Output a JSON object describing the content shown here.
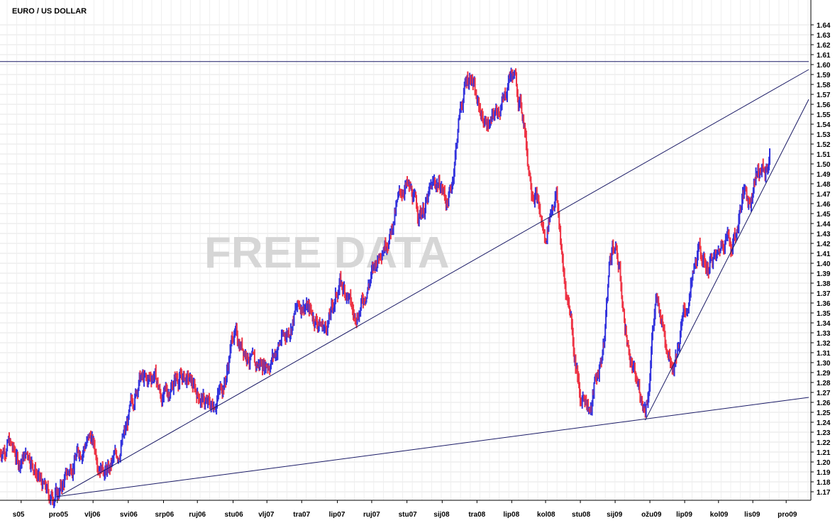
{
  "chart_data": {
    "type": "candlestick",
    "title": "EURO / US DOLLAR",
    "watermark": "FREE DATA",
    "ylim": [
      1.16,
      1.65
    ],
    "yticks": [
      1.17,
      1.18,
      1.19,
      1.2,
      1.21,
      1.22,
      1.23,
      1.24,
      1.25,
      1.26,
      1.27,
      1.28,
      1.29,
      1.3,
      1.31,
      1.32,
      1.33,
      1.34,
      1.35,
      1.36,
      1.37,
      1.38,
      1.39,
      1.4,
      1.41,
      1.42,
      1.43,
      1.44,
      1.45,
      1.46,
      1.47,
      1.48,
      1.49,
      1.5,
      1.51,
      1.52,
      1.53,
      1.54,
      1.55,
      1.56,
      1.57,
      1.58,
      1.59,
      1.6,
      1.61,
      1.62,
      1.63,
      1.64
    ],
    "ytick_labels": [
      "1.17",
      "1.18",
      "1.19",
      "1.20",
      "1.21",
      "1.22",
      "1.23",
      "1.24",
      "1.25",
      "1.26",
      "1.27",
      "1.28",
      "1.29",
      "1.30",
      "1.31",
      "1.32",
      "1.33",
      "1.34",
      "1.35",
      "1.36",
      "1.37",
      "1.38",
      "1.39",
      "1.40",
      "1.41",
      "1.42",
      "1.43",
      "1.44",
      "1.45",
      "1.46",
      "1.47",
      "1.48",
      "1.49",
      "1.50",
      "1.51",
      "1.52",
      "1.53",
      "1.54",
      "1.55",
      "1.56",
      "1.57",
      "1.58",
      "1.59",
      "1.60",
      "1.61",
      "1.62",
      "1.63",
      "1.64"
    ],
    "xlim": [
      "2005-08-01",
      "2010-01-25"
    ],
    "xticks": [
      {
        "date": "2005-09-15",
        "label": "s05"
      },
      {
        "date": "2005-12-01",
        "label": "pro05"
      },
      {
        "date": "2006-02-15",
        "label": "vlj06"
      },
      {
        "date": "2006-05-01",
        "label": "svi06"
      },
      {
        "date": "2006-07-15",
        "label": "srp06"
      },
      {
        "date": "2006-09-25",
        "label": "ruj06"
      },
      {
        "date": "2006-12-10",
        "label": "stu06"
      },
      {
        "date": "2007-02-20",
        "label": "vlj07"
      },
      {
        "date": "2007-05-05",
        "label": "tra07"
      },
      {
        "date": "2007-07-20",
        "label": "lip07"
      },
      {
        "date": "2007-10-01",
        "label": "ruj07"
      },
      {
        "date": "2007-12-15",
        "label": "stu07"
      },
      {
        "date": "2008-02-28",
        "label": "sij08"
      },
      {
        "date": "2008-05-12",
        "label": "tra08"
      },
      {
        "date": "2008-07-25",
        "label": "lip08"
      },
      {
        "date": "2008-10-05",
        "label": "kol08"
      },
      {
        "date": "2008-12-18",
        "label": "stu08"
      },
      {
        "date": "2009-03-02",
        "label": "sij09"
      },
      {
        "date": "2009-05-15",
        "label": "ožu09"
      },
      {
        "date": "2009-07-28",
        "label": "lip09"
      },
      {
        "date": "2009-10-08",
        "label": "kol09"
      },
      {
        "date": "2009-12-20",
        "label": "lis09"
      },
      {
        "date": "2010-03-01",
        "label": "pro09"
      }
    ],
    "anchors": [
      [
        "2005-08-01",
        1.21
      ],
      [
        "2005-08-20",
        1.22
      ],
      [
        "2005-09-10",
        1.2
      ],
      [
        "2005-10-01",
        1.21
      ],
      [
        "2005-10-25",
        1.18
      ],
      [
        "2005-11-15",
        1.165
      ],
      [
        "2005-12-05",
        1.17
      ],
      [
        "2005-12-25",
        1.19
      ],
      [
        "2006-01-15",
        1.21
      ],
      [
        "2006-02-10",
        1.225
      ],
      [
        "2006-02-28",
        1.2
      ],
      [
        "2006-03-20",
        1.19
      ],
      [
        "2006-04-10",
        1.21
      ],
      [
        "2006-04-25",
        1.23
      ],
      [
        "2006-05-10",
        1.26
      ],
      [
        "2006-05-25",
        1.285
      ],
      [
        "2006-06-10",
        1.28
      ],
      [
        "2006-06-25",
        1.29
      ],
      [
        "2006-07-10",
        1.265
      ],
      [
        "2006-07-25",
        1.27
      ],
      [
        "2006-08-10",
        1.285
      ],
      [
        "2006-08-25",
        1.285
      ],
      [
        "2006-09-10",
        1.28
      ],
      [
        "2006-09-25",
        1.27
      ],
      [
        "2006-10-10",
        1.26
      ],
      [
        "2006-10-25",
        1.255
      ],
      [
        "2006-11-10",
        1.27
      ],
      [
        "2006-11-25",
        1.285
      ],
      [
        "2006-12-10",
        1.33
      ],
      [
        "2006-12-25",
        1.32
      ],
      [
        "2007-01-10",
        1.31
      ],
      [
        "2007-01-25",
        1.295
      ],
      [
        "2007-02-10",
        1.3
      ],
      [
        "2007-02-25",
        1.3
      ],
      [
        "2007-03-10",
        1.31
      ],
      [
        "2007-03-25",
        1.325
      ],
      [
        "2007-04-10",
        1.335
      ],
      [
        "2007-04-25",
        1.355
      ],
      [
        "2007-05-10",
        1.36
      ],
      [
        "2007-05-25",
        1.35
      ],
      [
        "2007-06-10",
        1.34
      ],
      [
        "2007-06-25",
        1.335
      ],
      [
        "2007-07-10",
        1.355
      ],
      [
        "2007-07-25",
        1.38
      ],
      [
        "2007-08-10",
        1.37
      ],
      [
        "2007-08-25",
        1.345
      ],
      [
        "2007-09-10",
        1.36
      ],
      [
        "2007-09-25",
        1.38
      ],
      [
        "2007-10-10",
        1.4
      ],
      [
        "2007-10-25",
        1.42
      ],
      [
        "2007-11-10",
        1.43
      ],
      [
        "2007-11-25",
        1.46
      ],
      [
        "2007-12-10",
        1.48
      ],
      [
        "2007-12-25",
        1.47
      ],
      [
        "2008-01-10",
        1.45
      ],
      [
        "2008-01-25",
        1.46
      ],
      [
        "2008-02-10",
        1.48
      ],
      [
        "2008-02-25",
        1.48
      ],
      [
        "2008-03-10",
        1.46
      ],
      [
        "2008-03-20",
        1.48
      ],
      [
        "2008-04-05",
        1.55
      ],
      [
        "2008-04-20",
        1.585
      ],
      [
        "2008-05-01",
        1.59
      ],
      [
        "2008-05-10",
        1.565
      ],
      [
        "2008-05-25",
        1.545
      ],
      [
        "2008-06-10",
        1.54
      ],
      [
        "2008-06-25",
        1.555
      ],
      [
        "2008-07-10",
        1.565
      ],
      [
        "2008-07-20",
        1.59
      ],
      [
        "2008-07-30",
        1.59
      ],
      [
        "2008-08-10",
        1.565
      ],
      [
        "2008-08-20",
        1.545
      ],
      [
        "2008-08-28",
        1.505
      ],
      [
        "2008-09-05",
        1.48
      ],
      [
        "2008-09-15",
        1.47
      ],
      [
        "2008-09-25",
        1.445
      ],
      [
        "2008-10-05",
        1.42
      ],
      [
        "2008-10-12",
        1.445
      ],
      [
        "2008-10-20",
        1.46
      ],
      [
        "2008-10-28",
        1.47
      ],
      [
        "2008-11-05",
        1.43
      ],
      [
        "2008-11-12",
        1.39
      ],
      [
        "2008-11-20",
        1.365
      ],
      [
        "2008-11-28",
        1.35
      ],
      [
        "2008-12-05",
        1.31
      ],
      [
        "2008-12-12",
        1.29
      ],
      [
        "2008-12-18",
        1.255
      ],
      [
        "2008-12-25",
        1.27
      ],
      [
        "2009-01-02",
        1.26
      ],
      [
        "2009-01-10",
        1.25
      ],
      [
        "2009-01-18",
        1.28
      ],
      [
        "2009-01-25",
        1.29
      ],
      [
        "2009-02-01",
        1.305
      ],
      [
        "2009-02-07",
        1.32
      ],
      [
        "2009-02-12",
        1.36
      ],
      [
        "2009-02-18",
        1.4
      ],
      [
        "2009-02-25",
        1.42
      ],
      [
        "2009-03-05",
        1.41
      ],
      [
        "2009-03-12",
        1.39
      ],
      [
        "2009-03-20",
        1.35
      ],
      [
        "2009-03-28",
        1.32
      ],
      [
        "2009-04-05",
        1.3
      ],
      [
        "2009-04-15",
        1.28
      ],
      [
        "2009-04-25",
        1.27
      ],
      [
        "2009-05-05",
        1.255
      ],
      [
        "2009-05-12",
        1.27
      ],
      [
        "2009-05-20",
        1.33
      ],
      [
        "2009-05-28",
        1.36
      ],
      [
        "2009-06-05",
        1.35
      ],
      [
        "2009-06-15",
        1.33
      ],
      [
        "2009-06-25",
        1.31
      ],
      [
        "2009-07-05",
        1.3
      ],
      [
        "2009-07-15",
        1.32
      ],
      [
        "2009-07-25",
        1.345
      ],
      [
        "2009-08-05",
        1.36
      ],
      [
        "2009-08-15",
        1.385
      ],
      [
        "2009-08-25",
        1.41
      ],
      [
        "2009-09-05",
        1.405
      ],
      [
        "2009-09-15",
        1.395
      ],
      [
        "2009-09-25",
        1.405
      ],
      [
        "2009-10-05",
        1.405
      ],
      [
        "2009-10-15",
        1.42
      ],
      [
        "2009-10-25",
        1.43
      ],
      [
        "2009-11-05",
        1.42
      ],
      [
        "2009-11-15",
        1.43
      ],
      [
        "2009-11-25",
        1.46
      ],
      [
        "2009-12-05",
        1.475
      ],
      [
        "2009-12-15",
        1.46
      ],
      [
        "2009-12-25",
        1.49
      ],
      [
        "2010-01-05",
        1.495
      ],
      [
        "2010-01-15",
        1.49
      ],
      [
        "2010-01-25",
        1.505
      ]
    ],
    "trendlines": [
      {
        "from": [
          "2005-08-01",
          1.603
        ],
        "to": [
          "2010-01-25",
          1.603
        ]
      },
      {
        "from": [
          "2005-11-28",
          1.165
        ],
        "to": [
          "2010-01-25",
          1.265
        ]
      },
      {
        "from": [
          "2005-12-10",
          1.167
        ],
        "to": [
          "2010-01-25",
          1.595
        ]
      },
      {
        "from": [
          "2009-05-05",
          1.242
        ],
        "to": [
          "2010-01-25",
          1.565
        ]
      }
    ],
    "colors": {
      "up": "#3333dd",
      "down": "#ee3344",
      "grid": "#e6e6e6",
      "trend": "#1a1a66",
      "axis": "#000000"
    }
  }
}
